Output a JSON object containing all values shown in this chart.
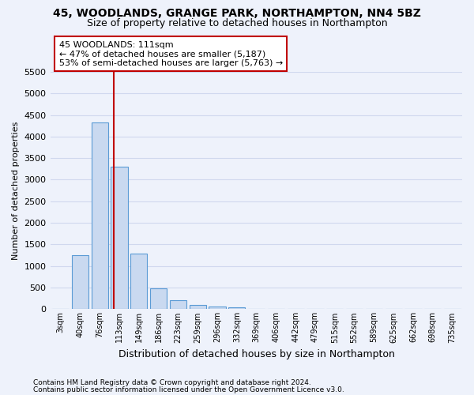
{
  "title": "45, WOODLANDS, GRANGE PARK, NORTHAMPTON, NN4 5BZ",
  "subtitle": "Size of property relative to detached houses in Northampton",
  "xlabel": "Distribution of detached houses by size in Northampton",
  "ylabel": "Number of detached properties",
  "footnote1": "Contains HM Land Registry data © Crown copyright and database right 2024.",
  "footnote2": "Contains public sector information licensed under the Open Government Licence v3.0.",
  "bar_labels": [
    "3sqm",
    "40sqm",
    "76sqm",
    "113sqm",
    "149sqm",
    "186sqm",
    "223sqm",
    "259sqm",
    "296sqm",
    "332sqm",
    "369sqm",
    "406sqm",
    "442sqm",
    "479sqm",
    "515sqm",
    "552sqm",
    "589sqm",
    "625sqm",
    "662sqm",
    "698sqm",
    "735sqm"
  ],
  "bar_values": [
    0,
    1260,
    4330,
    3300,
    1280,
    490,
    215,
    90,
    60,
    50,
    0,
    0,
    0,
    0,
    0,
    0,
    0,
    0,
    0,
    0,
    0
  ],
  "bar_color": "#c9d9f0",
  "bar_edge_color": "#5b9bd5",
  "vline_x": 2.73,
  "vline_color": "#c00000",
  "annotation_line1": "45 WOODLANDS: 111sqm",
  "annotation_line2": "← 47% of detached houses are smaller (5,187)",
  "annotation_line3": "53% of semi-detached houses are larger (5,763) →",
  "annotation_box_facecolor": "#ffffff",
  "annotation_box_edgecolor": "#c00000",
  "ylim_max": 5500,
  "background_color": "#eef2fb",
  "grid_color": "#d0d8ee",
  "title_fontsize": 10,
  "subtitle_fontsize": 9,
  "ylabel_fontsize": 8,
  "xlabel_fontsize": 9,
  "ytick_fontsize": 8,
  "xtick_fontsize": 7,
  "footnote_fontsize": 6.5,
  "yticks": [
    0,
    500,
    1000,
    1500,
    2000,
    2500,
    3000,
    3500,
    4000,
    4500,
    5000,
    5500
  ]
}
